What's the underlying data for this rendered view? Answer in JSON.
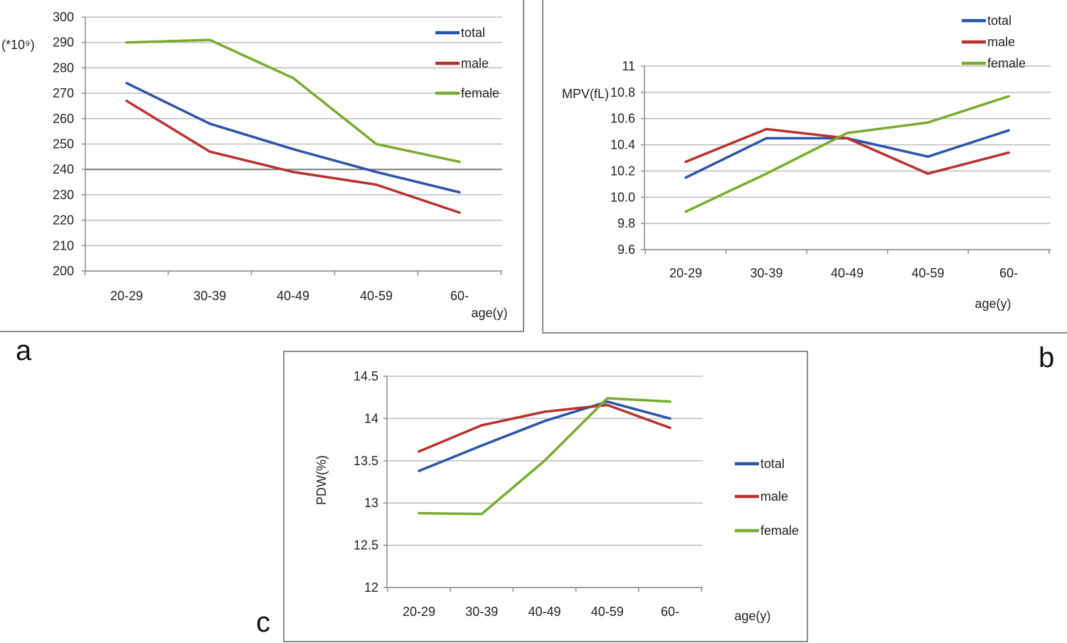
{
  "panel_letters": [
    "a",
    "b",
    "c"
  ],
  "chart_data": [
    {
      "type": "line",
      "panel": "a",
      "ylabel": "(*10⁹)",
      "xlabel": "age(y)",
      "categories": [
        "20-29",
        "30-39",
        "40-49",
        "40-59",
        "60-"
      ],
      "ylim": [
        200,
        300
      ],
      "yticks": [
        200,
        210,
        220,
        230,
        240,
        250,
        260,
        270,
        280,
        290,
        300
      ],
      "grid": true,
      "legend_position": "top-right",
      "series": [
        {
          "name": "total",
          "color": "#2a55a8",
          "values": [
            274,
            258,
            248,
            239,
            231
          ]
        },
        {
          "name": "male",
          "color": "#b8312f",
          "values": [
            267,
            247,
            239,
            234,
            223
          ]
        },
        {
          "name": "female",
          "color": "#7aab2e",
          "values": [
            290,
            291,
            276,
            250,
            243
          ]
        }
      ]
    },
    {
      "type": "line",
      "panel": "b",
      "ylabel": "MPV(fL)",
      "xlabel": "age(y)",
      "categories": [
        "20-29",
        "30-39",
        "40-49",
        "40-59",
        "60-"
      ],
      "ylim": [
        9.6,
        11
      ],
      "yticks": [
        9.6,
        9.8,
        10.0,
        10.2,
        10.4,
        10.6,
        10.8,
        11
      ],
      "yticklabels": [
        "9.6",
        "9.8",
        "10.0",
        "10.2",
        "10.4",
        "10.6",
        "10.8",
        "11"
      ],
      "grid": true,
      "legend_position": "top-right",
      "series": [
        {
          "name": "total",
          "color": "#2a55a8",
          "values": [
            10.15,
            10.45,
            10.45,
            10.31,
            10.51
          ]
        },
        {
          "name": "male",
          "color": "#b8312f",
          "values": [
            10.27,
            10.52,
            10.45,
            10.18,
            10.34
          ]
        },
        {
          "name": "female",
          "color": "#7aab2e",
          "values": [
            9.89,
            10.18,
            10.49,
            10.57,
            10.77
          ]
        }
      ]
    },
    {
      "type": "line",
      "panel": "c",
      "ylabel": "PDW(%)",
      "xlabel": "age(y)",
      "categories": [
        "20-29",
        "30-39",
        "40-49",
        "40-59",
        "60-"
      ],
      "ylim": [
        12,
        14.5
      ],
      "yticks": [
        12,
        12.5,
        13,
        13.5,
        14,
        14.5
      ],
      "yticklabels": [
        "12",
        "12.5",
        "13",
        "13.5",
        "14",
        "14.5"
      ],
      "grid": true,
      "legend_position": "right",
      "series": [
        {
          "name": "total",
          "color": "#2a55a8",
          "values": [
            13.38,
            13.68,
            13.97,
            14.2,
            14.0
          ]
        },
        {
          "name": "male",
          "color": "#b8312f",
          "values": [
            13.61,
            13.92,
            14.08,
            14.16,
            13.89
          ]
        },
        {
          "name": "female",
          "color": "#7aab2e",
          "values": [
            12.88,
            12.87,
            13.5,
            14.24,
            14.2
          ]
        }
      ]
    }
  ]
}
